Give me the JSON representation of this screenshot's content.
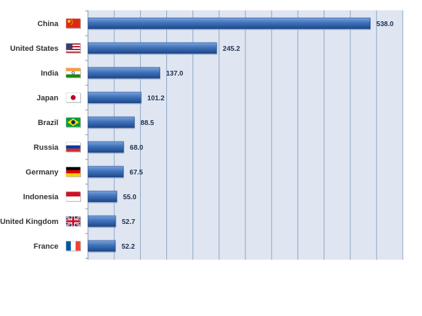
{
  "chart_data": {
    "type": "bar",
    "orientation": "horizontal",
    "title": "",
    "xlabel": "",
    "ylabel": "",
    "xlim": [
      0,
      600
    ],
    "grid": true,
    "legend": "none",
    "categories": [
      "China",
      "United States",
      "India",
      "Japan",
      "Brazil",
      "Russia",
      "Germany",
      "Indonesia",
      "United Kingdom",
      "France"
    ],
    "values": [
      538.0,
      245.2,
      137.0,
      101.2,
      88.5,
      68.0,
      67.5,
      55.0,
      52.7,
      52.2
    ],
    "value_labels": [
      "538.0",
      "245.2",
      "137.0",
      "101.2",
      "88.5",
      "68.0",
      "67.5",
      "55.0",
      "52.7",
      "52.2"
    ],
    "flag_icons": [
      "flag-china-icon",
      "flag-united-states-icon",
      "flag-india-icon",
      "flag-japan-icon",
      "flag-brazil-icon",
      "flag-russia-icon",
      "flag-germany-icon",
      "flag-indonesia-icon",
      "flag-united-kingdom-icon",
      "flag-france-icon"
    ],
    "colors": {
      "plot_background": "#dfe6f1",
      "grid_line": "#8aa3c8",
      "bar": "#3a6cb4",
      "bar_highlight": "#6f9ad6",
      "bar_shadow": "#1f4788"
    }
  }
}
